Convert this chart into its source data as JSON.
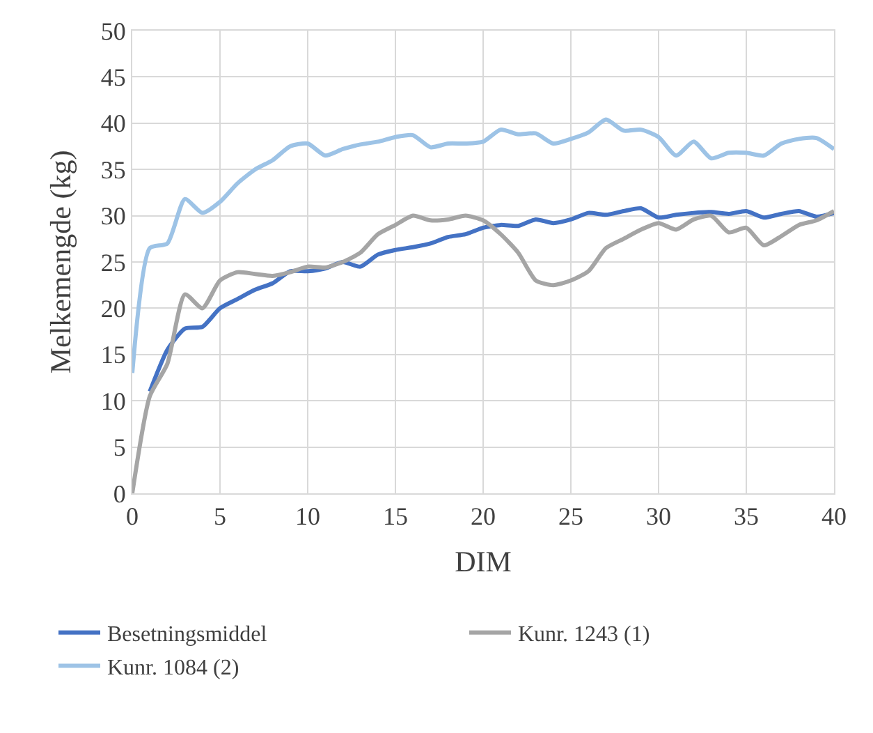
{
  "chart_data": {
    "type": "line",
    "xlabel": "DIM",
    "ylabel": "Melkemengde (kg)",
    "x": [
      0,
      1,
      2,
      3,
      4,
      5,
      6,
      7,
      8,
      9,
      10,
      11,
      12,
      13,
      14,
      15,
      16,
      17,
      18,
      19,
      20,
      21,
      22,
      23,
      24,
      25,
      26,
      27,
      28,
      29,
      30,
      31,
      32,
      33,
      34,
      35,
      36,
      37,
      38,
      39,
      40
    ],
    "xlim": [
      0,
      40
    ],
    "xticks": [
      0,
      5,
      10,
      15,
      20,
      25,
      30,
      35,
      40
    ],
    "ylim": [
      0,
      50
    ],
    "yticks": [
      0,
      5,
      10,
      15,
      20,
      25,
      30,
      35,
      40,
      45,
      50
    ],
    "grid": true,
    "legend": "bottom",
    "marker": "none",
    "line_style": "solid",
    "series": [
      {
        "name": "Besetningsmiddel",
        "color": "#4472c4",
        "values": [
          null,
          11,
          15.5,
          17.8,
          18,
          20,
          21,
          22,
          22.7,
          24,
          24,
          24.3,
          25,
          24.5,
          25.8,
          26.3,
          26.6,
          27,
          27.7,
          28,
          28.7,
          29,
          28.9,
          29.6,
          29.2,
          29.6,
          30.3,
          30.1,
          30.5,
          30.8,
          29.8,
          30.1,
          30.3,
          30.4,
          30.2,
          30.5,
          29.8,
          30.2,
          30.5,
          29.9,
          30.3
        ]
      },
      {
        "name": "Kunr. 1243 (1)",
        "color": "#a5a5a5",
        "values": [
          0,
          10.5,
          14,
          21.5,
          20,
          23,
          23.9,
          23.7,
          23.5,
          23.9,
          24.5,
          24.4,
          25,
          26,
          28,
          29,
          30,
          29.5,
          29.6,
          30,
          29.5,
          28,
          26,
          23,
          22.5,
          23,
          24,
          26.5,
          27.5,
          28.5,
          29.2,
          28.5,
          29.6,
          30,
          28.2,
          28.7,
          26.8,
          27.8,
          29,
          29.5,
          30.5
        ]
      },
      {
        "name": "Kunr. 1084 (2)",
        "color": "#9dc3e6",
        "values": [
          13,
          26.5,
          27,
          31.8,
          30.3,
          31.5,
          33.5,
          35,
          36,
          37.5,
          37.8,
          36.5,
          37.2,
          37.7,
          38,
          38.5,
          38.7,
          37.4,
          37.8,
          37.8,
          38,
          39.3,
          38.8,
          38.9,
          37.8,
          38.3,
          39,
          40.4,
          39.2,
          39.3,
          38.5,
          36.5,
          38,
          36.2,
          36.8,
          36.8,
          36.5,
          37.8,
          38.3,
          38.4,
          37.2
        ]
      }
    ]
  }
}
